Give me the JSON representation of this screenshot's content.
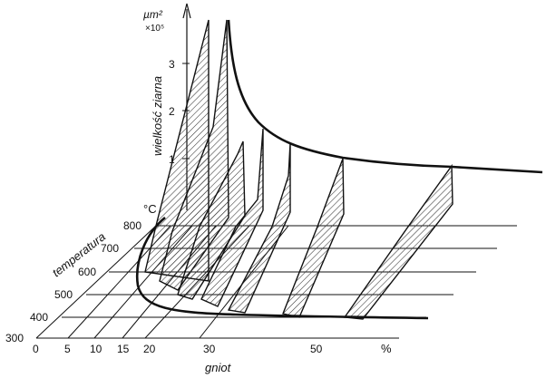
{
  "figure": {
    "z_axis": {
      "label": "wielkość ziarna",
      "unit_top": "µm²",
      "unit_scale": "×10⁵",
      "ticks": [
        "1",
        "2",
        "3"
      ]
    },
    "temperature_axis": {
      "label": "temperatura",
      "unit": "°C",
      "ticks": [
        "300",
        "400",
        "500",
        "600",
        "700",
        "800"
      ]
    },
    "strain_axis": {
      "label": "gniot",
      "unit": "%",
      "ticks": [
        "0",
        "5",
        "10",
        "15",
        "20",
        "30",
        "50"
      ]
    },
    "line_color": "#111111",
    "hatch_color": "#333333"
  }
}
